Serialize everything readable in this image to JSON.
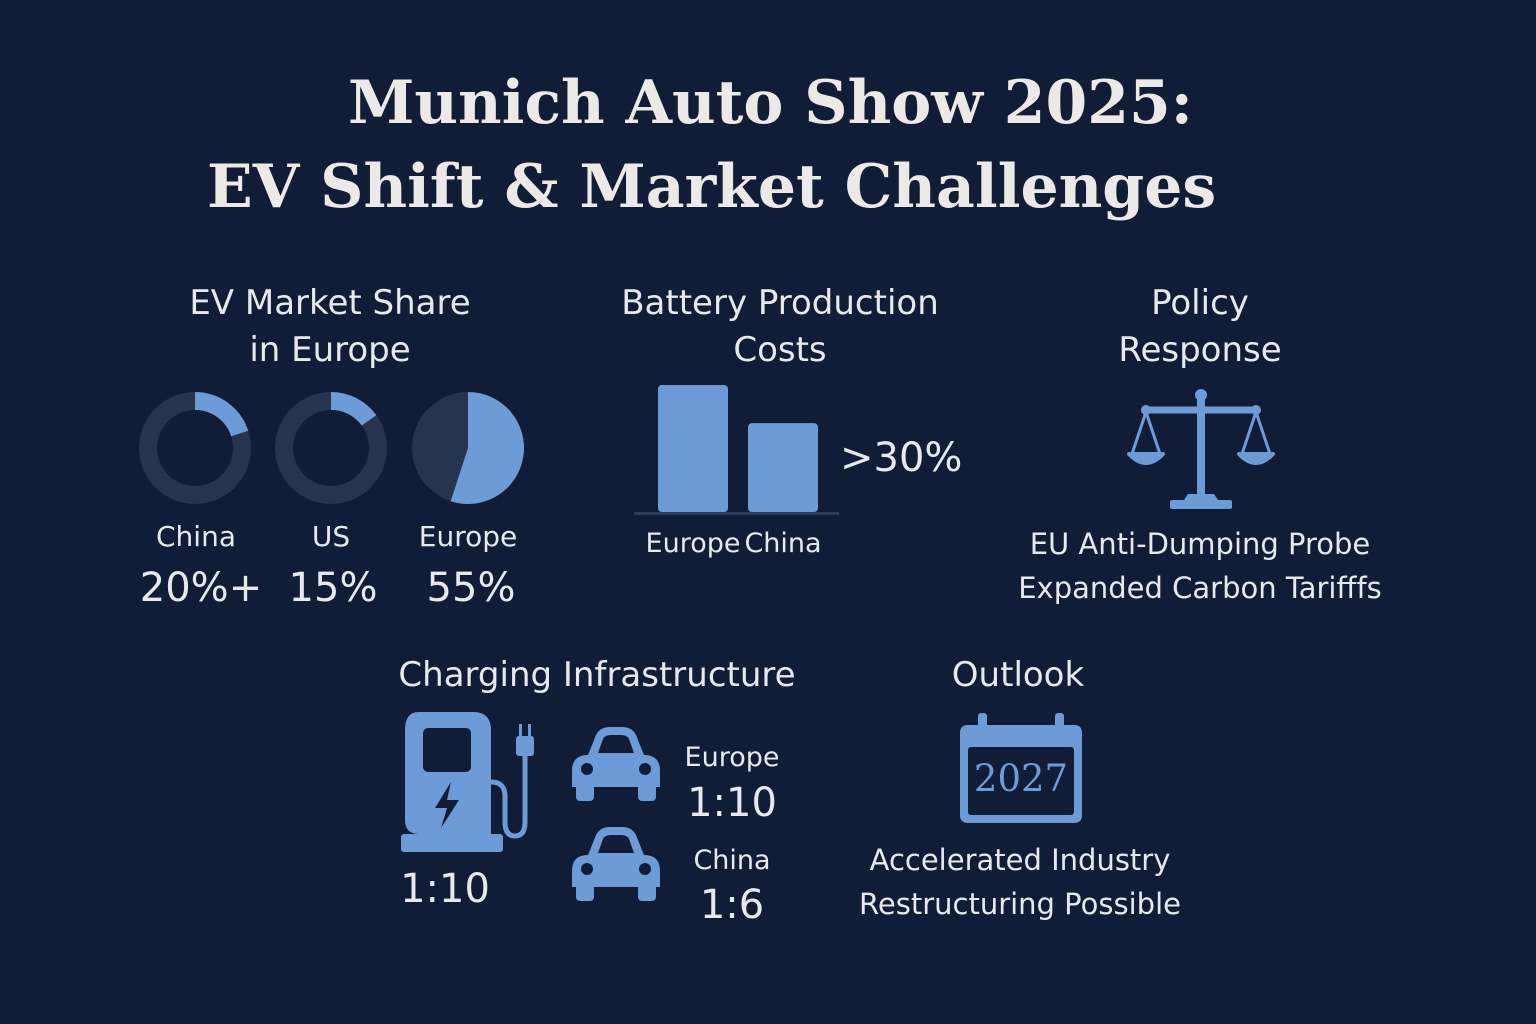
{
  "title": {
    "line1": "Munich Auto Show 2025:",
    "line2": "EV Shift & Market Challenges"
  },
  "colors": {
    "background": "#111d37",
    "accent": "#6d9bd8",
    "muted_ring": "#26344f",
    "text": "#e7e9ee"
  },
  "market_share": {
    "heading_line1": "EV Market Share",
    "heading_line2": "in Europe",
    "items": [
      {
        "label": "China",
        "value_text": "20%+",
        "fraction": 0.2,
        "style": "donut"
      },
      {
        "label": "US",
        "value_text": "15%",
        "fraction": 0.15,
        "style": "donut"
      },
      {
        "label": "Europe",
        "value_text": "55%",
        "fraction": 0.55,
        "style": "pie"
      }
    ]
  },
  "battery_costs": {
    "heading_line1": "Battery Production",
    "heading_line2": "Costs",
    "annotation": ">30%",
    "chart_data": {
      "type": "bar",
      "categories": [
        "Europe",
        "China"
      ],
      "values": [
        100,
        70
      ],
      "title": "",
      "xlabel": "",
      "ylabel": ""
    }
  },
  "policy": {
    "heading_line1": "Policy",
    "heading_line2": "Response",
    "icon": "scales-of-justice-icon",
    "lines": [
      "EU Anti-Dumping Probe",
      "Expanded Carbon Tarifffs"
    ]
  },
  "charging": {
    "heading": "Charging Infrastructure",
    "icon": "charging-station-icon",
    "overall_ratio": "1:10",
    "regions": [
      {
        "name": "Europe",
        "ratio": "1:10",
        "icon": "car-icon"
      },
      {
        "name": "China",
        "ratio": "1:6",
        "icon": "car-icon"
      }
    ]
  },
  "outlook": {
    "heading": "Outlook",
    "icon": "calendar-icon",
    "year": "2027",
    "lines": [
      "Accelerated Industry",
      "Restructuring Possible"
    ]
  }
}
